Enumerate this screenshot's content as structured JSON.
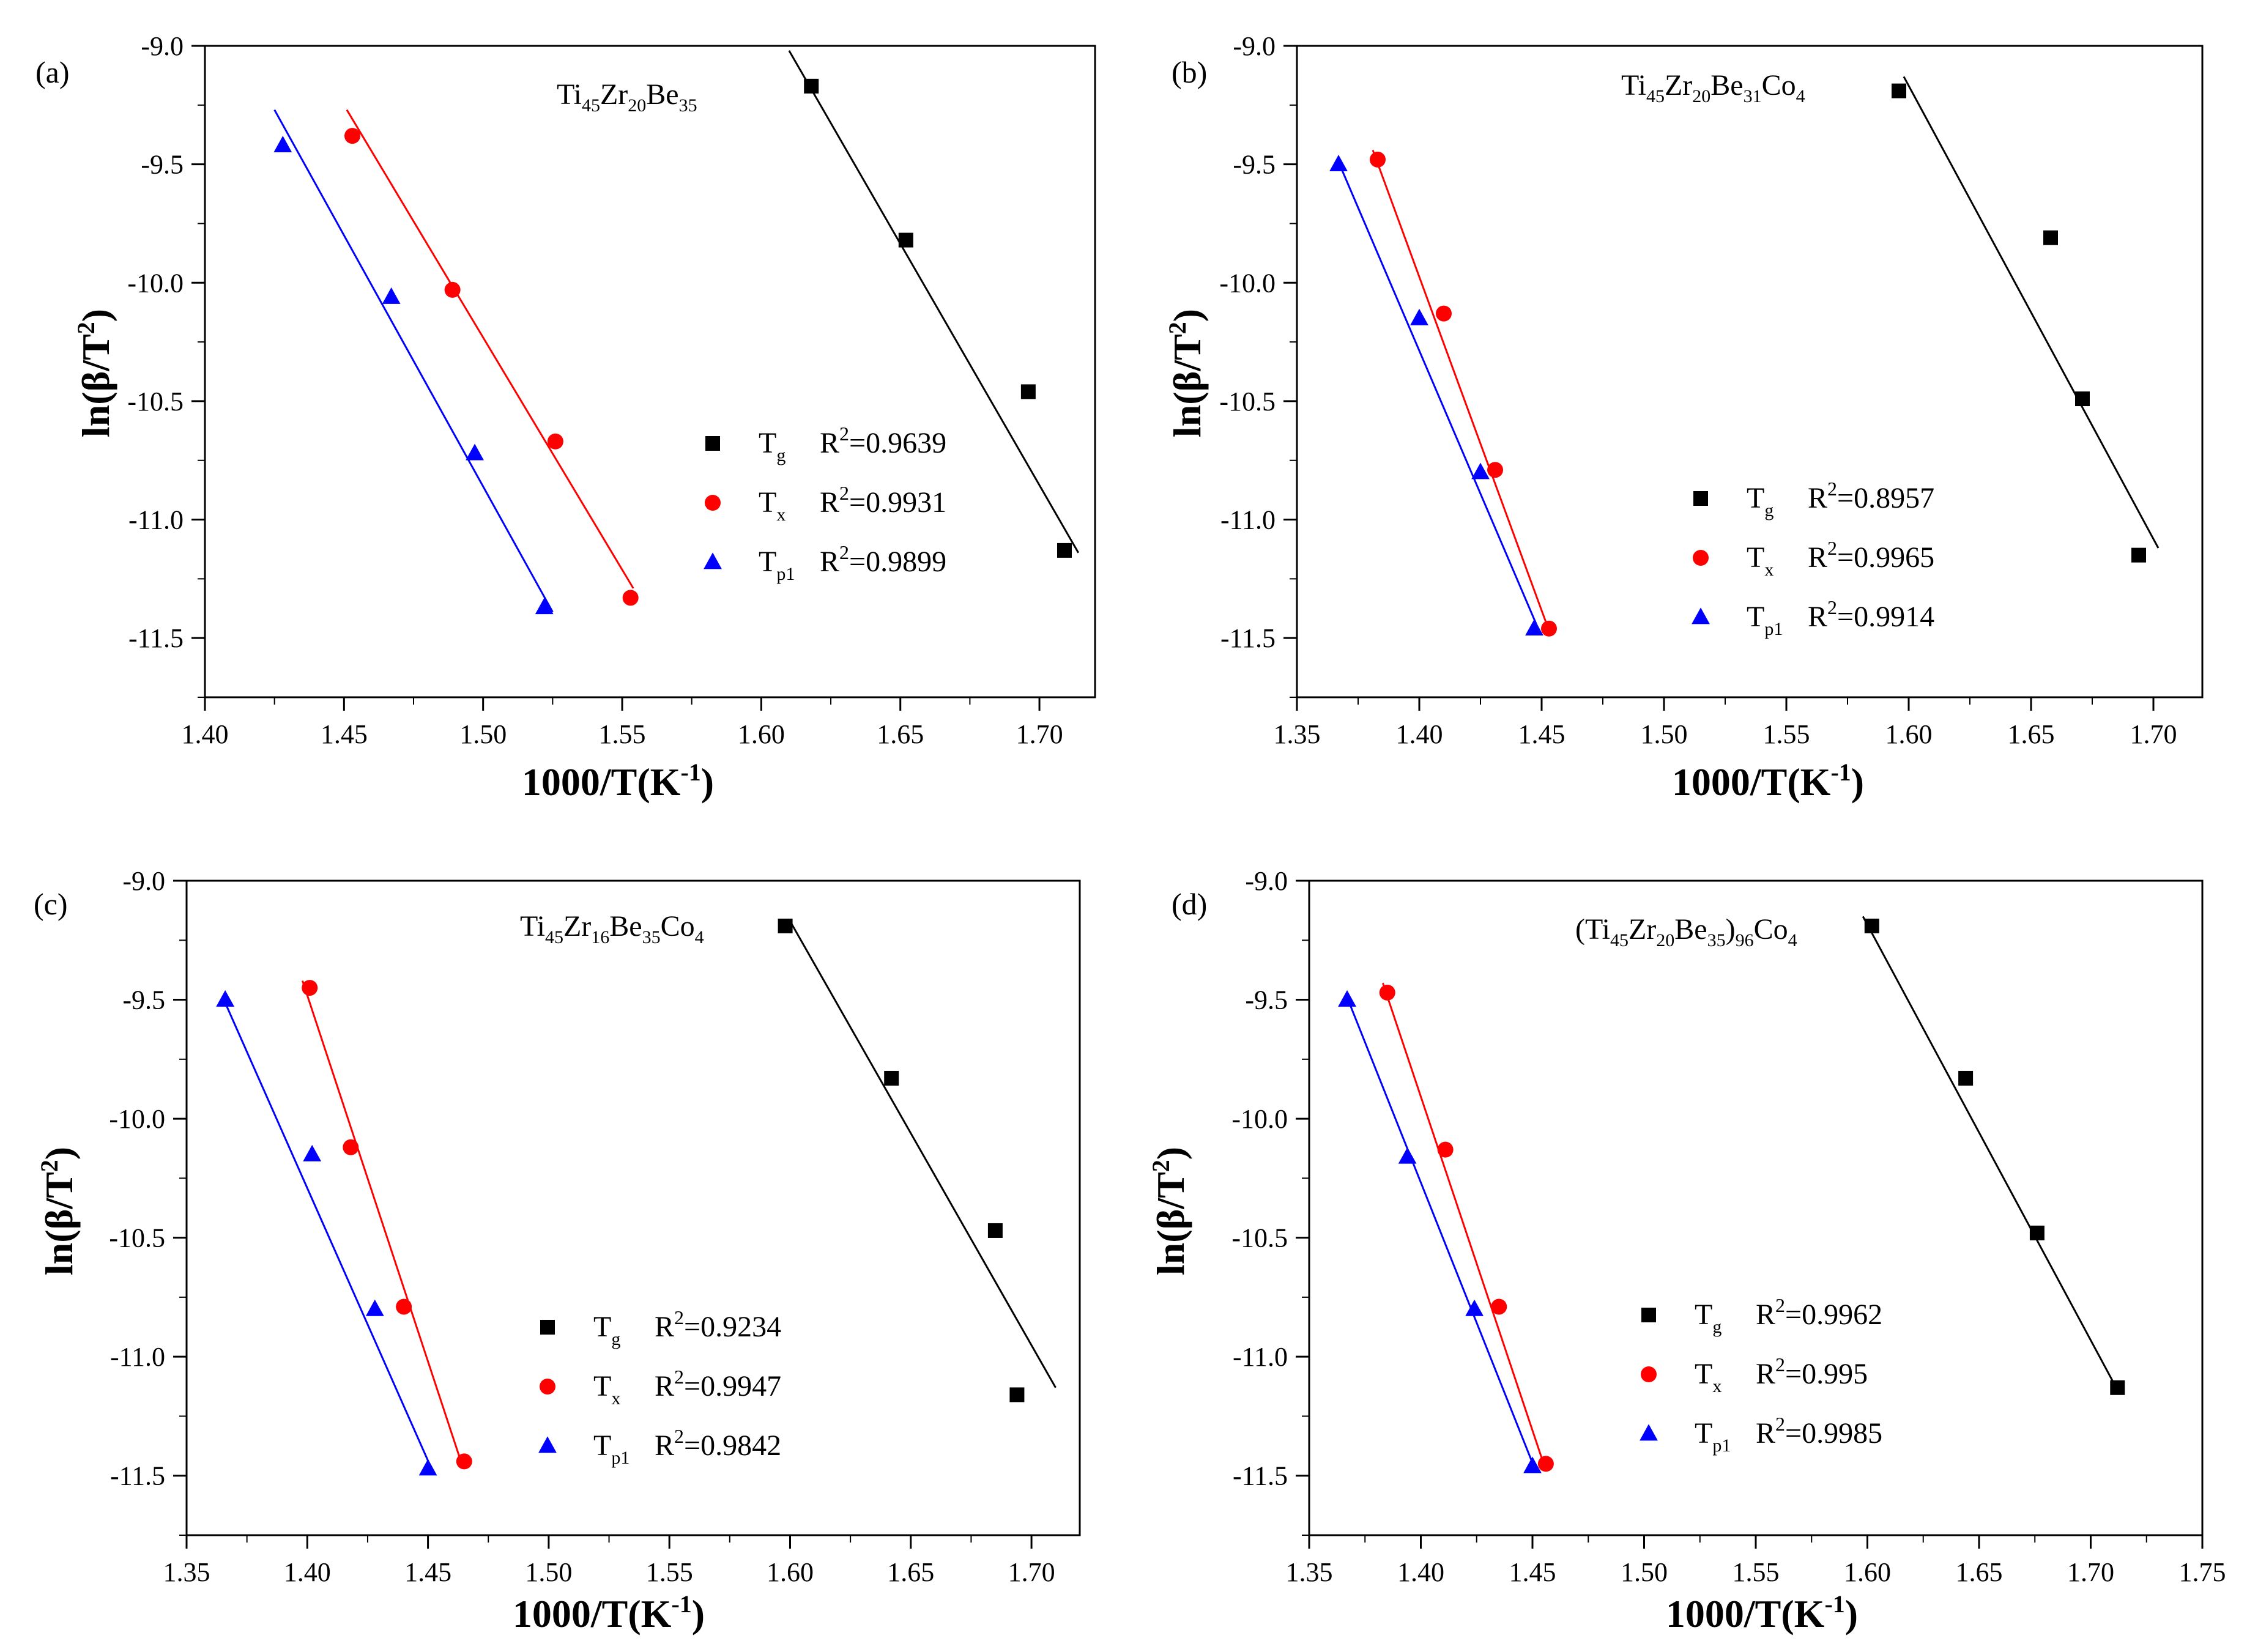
{
  "figure": {
    "panels": [
      {
        "label": "(a)",
        "composition": [
          {
            "t": "Ti"
          },
          {
            "t": "45",
            "sub": true
          },
          {
            "t": "Zr"
          },
          {
            "t": "20",
            "sub": true
          },
          {
            "t": "Be"
          },
          {
            "t": "35",
            "sub": true
          }
        ],
        "xlabel": "1000/T(K",
        "xlabel_sup": "-1",
        "xlabel_end": ")",
        "ylabel": "ln(β/T",
        "ylabel_sup": "2",
        "ylabel_end": ")"
      },
      {
        "label": "(b)",
        "composition": [
          {
            "t": "Ti"
          },
          {
            "t": "45",
            "sub": true
          },
          {
            "t": "Zr"
          },
          {
            "t": "20",
            "sub": true
          },
          {
            "t": "Be"
          },
          {
            "t": "31",
            "sub": true
          },
          {
            "t": "Co"
          },
          {
            "t": "4",
            "sub": true
          }
        ],
        "xlabel": "1000/T(K",
        "xlabel_sup": "-1",
        "xlabel_end": ")",
        "ylabel": "ln(β/T",
        "ylabel_sup": "2",
        "ylabel_end": ")"
      },
      {
        "label": "(c)",
        "composition": [
          {
            "t": "Ti"
          },
          {
            "t": "45",
            "sub": true
          },
          {
            "t": "Zr"
          },
          {
            "t": "16",
            "sub": true
          },
          {
            "t": "Be"
          },
          {
            "t": "35",
            "sub": true
          },
          {
            "t": "Co"
          },
          {
            "t": "4",
            "sub": true
          }
        ],
        "xlabel": "1000/T(K",
        "xlabel_sup": "-1",
        "xlabel_end": ")",
        "ylabel": "ln(β/T",
        "ylabel_sup": "2",
        "ylabel_end": ")"
      },
      {
        "label": "(d)",
        "composition": [
          {
            "t": "(Ti"
          },
          {
            "t": "45",
            "sub": true
          },
          {
            "t": "Zr"
          },
          {
            "t": "20",
            "sub": true
          },
          {
            "t": "Be"
          },
          {
            "t": "35",
            "sub": true
          },
          {
            "t": ")"
          },
          {
            "t": "96",
            "sub": true
          },
          {
            "t": "Co"
          },
          {
            "t": "4",
            "sub": true
          }
        ],
        "xlabel": "1000/T(K",
        "xlabel_sup": "-1",
        "xlabel_end": ")",
        "ylabel": "ln(β/T",
        "ylabel_sup": "2",
        "ylabel_end": ")"
      }
    ]
  },
  "chart_data": [
    {
      "type": "scatter",
      "panel": "(a)",
      "title": "Ti45Zr20Be35",
      "xlabel": "1000/T(K-1)",
      "ylabel": "ln(β/T2)",
      "xlim": [
        1.4,
        1.72
      ],
      "ylim": [
        -11.75,
        -9.0
      ],
      "xticks": [
        1.4,
        1.45,
        1.5,
        1.55,
        1.6,
        1.65,
        1.7
      ],
      "yticks": [
        -9.0,
        -9.5,
        -10.0,
        -10.5,
        -11.0,
        -11.5
      ],
      "legend_position": "center-right",
      "series": [
        {
          "name": "T",
          "sub": "g",
          "r2": "R2=0.9639",
          "color": "#000000",
          "marker": "square",
          "x": [
            1.618,
            1.652,
            1.696,
            1.709
          ],
          "y": [
            -9.17,
            -9.82,
            -10.46,
            -11.13
          ],
          "fit_x": [
            1.61,
            1.714
          ],
          "fit_y": [
            -9.02,
            -11.14
          ]
        },
        {
          "name": "T",
          "sub": "x",
          "r2": "R2=0.9931",
          "color": "#ff0000",
          "marker": "circle",
          "x": [
            1.453,
            1.489,
            1.526,
            1.553
          ],
          "y": [
            -9.38,
            -10.03,
            -10.67,
            -11.33
          ],
          "fit_x": [
            1.451,
            1.554
          ],
          "fit_y": [
            -9.27,
            -11.29
          ]
        },
        {
          "name": "T",
          "sub": "p1",
          "r2": "R2=0.9899",
          "color": "#0000ff",
          "marker": "triangle",
          "x": [
            1.428,
            1.467,
            1.497,
            1.522
          ],
          "y": [
            -9.42,
            -10.06,
            -10.72,
            -11.37
          ],
          "fit_x": [
            1.425,
            1.525
          ],
          "fit_y": [
            -9.27,
            -11.39
          ]
        }
      ]
    },
    {
      "type": "scatter",
      "panel": "(b)",
      "title": "Ti45Zr20Be31Co4",
      "xlabel": "1000/T(K-1)",
      "ylabel": "ln(β/T2)",
      "xlim": [
        1.35,
        1.72
      ],
      "ylim": [
        -11.75,
        -9.0
      ],
      "xticks": [
        1.35,
        1.4,
        1.45,
        1.5,
        1.55,
        1.6,
        1.65,
        1.7
      ],
      "yticks": [
        -9.0,
        -9.5,
        -10.0,
        -10.5,
        -11.0,
        -11.5
      ],
      "legend_position": "lower-center",
      "series": [
        {
          "name": "T",
          "sub": "g",
          "r2": "R2=0.8957",
          "color": "#000000",
          "marker": "square",
          "x": [
            1.596,
            1.658,
            1.671,
            1.694
          ],
          "y": [
            -9.19,
            -9.81,
            -10.49,
            -11.15
          ],
          "fit_x": [
            1.598,
            1.702
          ],
          "fit_y": [
            -9.13,
            -11.12
          ]
        },
        {
          "name": "T",
          "sub": "x",
          "r2": "R2=0.9965",
          "color": "#ff0000",
          "marker": "circle",
          "x": [
            1.383,
            1.41,
            1.431,
            1.453
          ],
          "y": [
            -9.48,
            -10.13,
            -10.79,
            -11.46
          ],
          "fit_x": [
            1.381,
            1.452
          ],
          "fit_y": [
            -9.44,
            -11.44
          ]
        },
        {
          "name": "T",
          "sub": "p1",
          "r2": "R2=0.9914",
          "color": "#0000ff",
          "marker": "triangle",
          "x": [
            1.367,
            1.4,
            1.425,
            1.447
          ],
          "y": [
            -9.5,
            -10.15,
            -10.8,
            -11.46
          ],
          "fit_x": [
            1.367,
            1.449
          ],
          "fit_y": [
            -9.49,
            -11.47
          ]
        }
      ]
    },
    {
      "type": "scatter",
      "panel": "(c)",
      "title": "Ti45Zr16Be35Co4",
      "xlabel": "1000/T(K-1)",
      "ylabel": "ln(β/T2)",
      "xlim": [
        1.35,
        1.72
      ],
      "ylim": [
        -11.75,
        -9.0
      ],
      "xticks": [
        1.35,
        1.4,
        1.45,
        1.5,
        1.55,
        1.6,
        1.65,
        1.7
      ],
      "yticks": [
        -9.0,
        -9.5,
        -10.0,
        -10.5,
        -11.0,
        -11.5
      ],
      "legend_position": "lower-center",
      "series": [
        {
          "name": "T",
          "sub": "g",
          "r2": "R2=0.9234",
          "color": "#000000",
          "marker": "square",
          "x": [
            1.598,
            1.642,
            1.685,
            1.694
          ],
          "y": [
            -9.19,
            -9.83,
            -10.47,
            -11.16
          ],
          "fit_x": [
            1.6,
            1.71
          ],
          "fit_y": [
            -9.17,
            -11.13
          ]
        },
        {
          "name": "T",
          "sub": "x",
          "r2": "R2=0.9947",
          "color": "#ff0000",
          "marker": "circle",
          "x": [
            1.401,
            1.418,
            1.44,
            1.465
          ],
          "y": [
            -9.45,
            -10.12,
            -10.79,
            -11.44
          ],
          "fit_x": [
            1.398,
            1.463
          ],
          "fit_y": [
            -9.42,
            -11.42
          ]
        },
        {
          "name": "T",
          "sub": "p1",
          "r2": "R2=0.9842",
          "color": "#0000ff",
          "marker": "triangle",
          "x": [
            1.366,
            1.402,
            1.428,
            1.45
          ],
          "y": [
            -9.5,
            -10.15,
            -10.8,
            -11.47
          ],
          "fit_x": [
            1.365,
            1.451
          ],
          "fit_y": [
            -9.49,
            -11.46
          ]
        }
      ]
    },
    {
      "type": "scatter",
      "panel": "(d)",
      "title": "(Ti45Zr20Be35)96Co4",
      "xlabel": "1000/T(K-1)",
      "ylabel": "ln(β/T2)",
      "xlim": [
        1.35,
        1.75
      ],
      "ylim": [
        -11.75,
        -9.0
      ],
      "xticks": [
        1.35,
        1.4,
        1.45,
        1.5,
        1.55,
        1.6,
        1.65,
        1.7,
        1.75
      ],
      "yticks": [
        -9.0,
        -9.5,
        -10.0,
        -10.5,
        -11.0,
        -11.5
      ],
      "legend_position": "lower-center",
      "series": [
        {
          "name": "T",
          "sub": "g",
          "r2": "R2=0.9962",
          "color": "#000000",
          "marker": "square",
          "x": [
            1.602,
            1.644,
            1.676,
            1.712
          ],
          "y": [
            -9.19,
            -9.83,
            -10.48,
            -11.13
          ],
          "fit_x": [
            1.598,
            1.712
          ],
          "fit_y": [
            -9.15,
            -11.14
          ]
        },
        {
          "name": "T",
          "sub": "x",
          "r2": "R2=0.995",
          "color": "#ff0000",
          "marker": "circle",
          "x": [
            1.385,
            1.411,
            1.435,
            1.456
          ],
          "y": [
            -9.47,
            -10.13,
            -10.79,
            -11.45
          ],
          "fit_x": [
            1.383,
            1.455
          ],
          "fit_y": [
            -9.43,
            -11.45
          ]
        },
        {
          "name": "T",
          "sub": "p1",
          "r2": "R2=0.9985",
          "color": "#0000ff",
          "marker": "triangle",
          "x": [
            1.367,
            1.394,
            1.424,
            1.45
          ],
          "y": [
            -9.5,
            -10.16,
            -10.8,
            -11.46
          ],
          "fit_x": [
            1.367,
            1.451
          ],
          "fit_y": [
            -9.49,
            -11.47
          ]
        }
      ]
    }
  ]
}
